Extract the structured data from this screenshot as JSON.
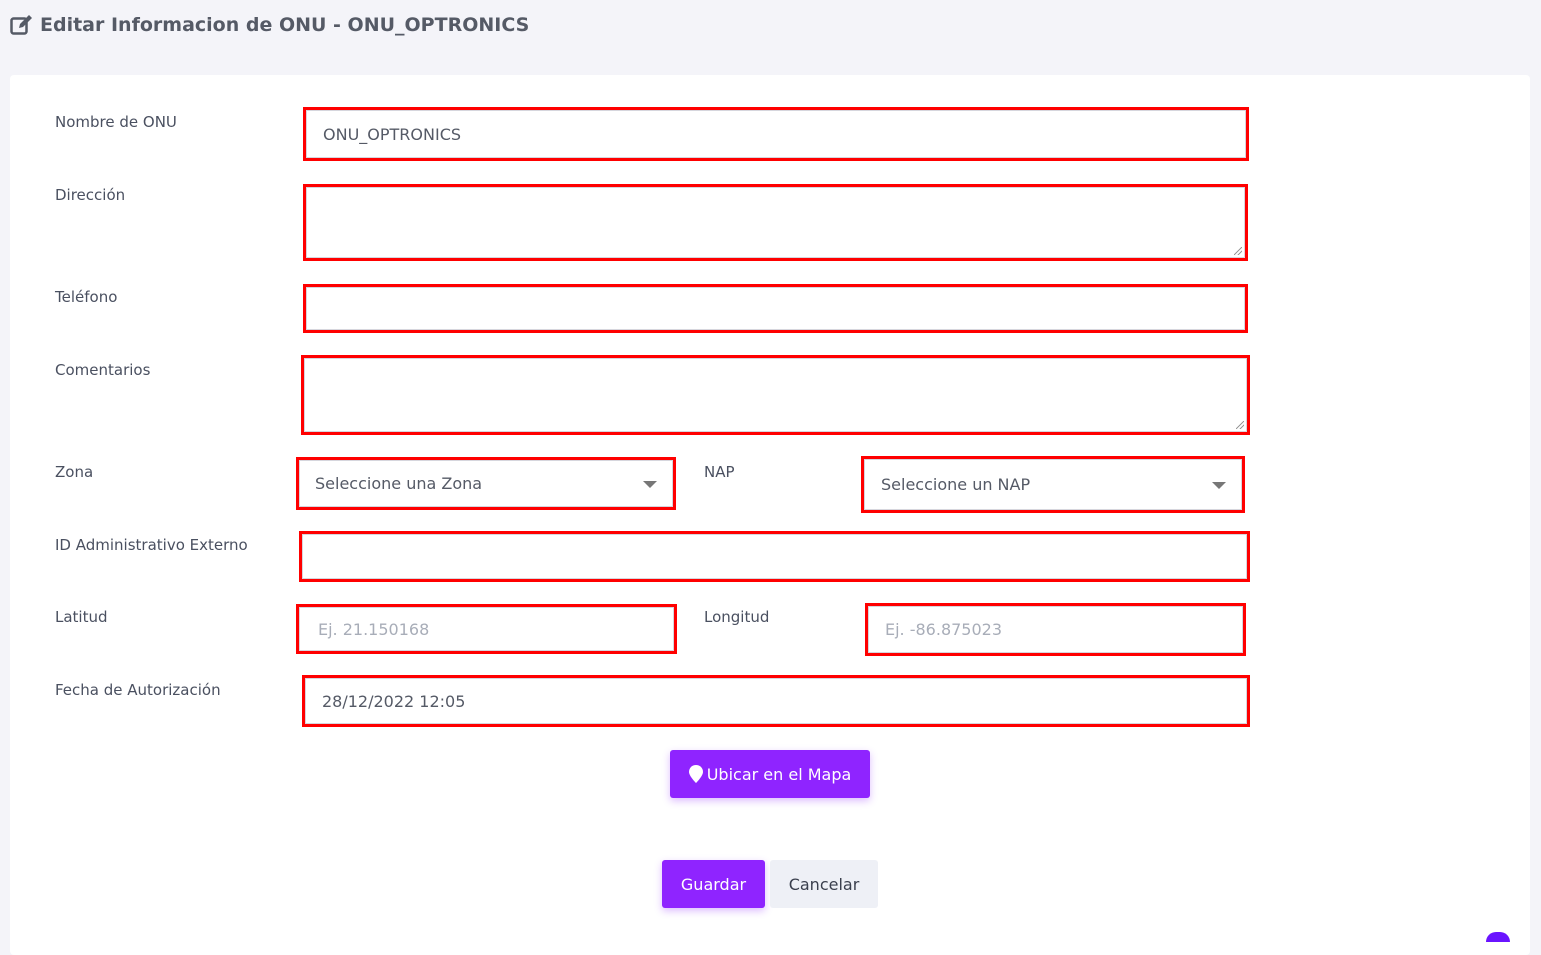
{
  "header": {
    "title": "Editar Informacion de ONU - ONU_OPTRONICS",
    "icon": "edit-icon"
  },
  "form": {
    "nombre": {
      "label": "Nombre de ONU",
      "value": "ONU_OPTRONICS"
    },
    "direccion": {
      "label": "Dirección",
      "value": ""
    },
    "telefono": {
      "label": "Teléfono",
      "value": ""
    },
    "comentarios": {
      "label": "Comentarios",
      "value": ""
    },
    "zona": {
      "label": "Zona",
      "selected": "Seleccione una Zona"
    },
    "nap": {
      "label": "NAP",
      "selected": "Seleccione un NAP"
    },
    "id_externo": {
      "label": "ID Administrativo Externo",
      "value": ""
    },
    "latitud": {
      "label": "Latitud",
      "placeholder": "Ej. 21.150168"
    },
    "longitud": {
      "label": "Longitud",
      "placeholder": "Ej. -86.875023"
    },
    "fecha": {
      "label": "Fecha de Autorización",
      "value": "28/12/2022 12:05"
    }
  },
  "buttons": {
    "map": "Ubicar en el Mapa",
    "save": "Guardar",
    "cancel": "Cancelar"
  },
  "colors": {
    "primary": "#8f24ff",
    "highlight_border": "#ff0000"
  }
}
